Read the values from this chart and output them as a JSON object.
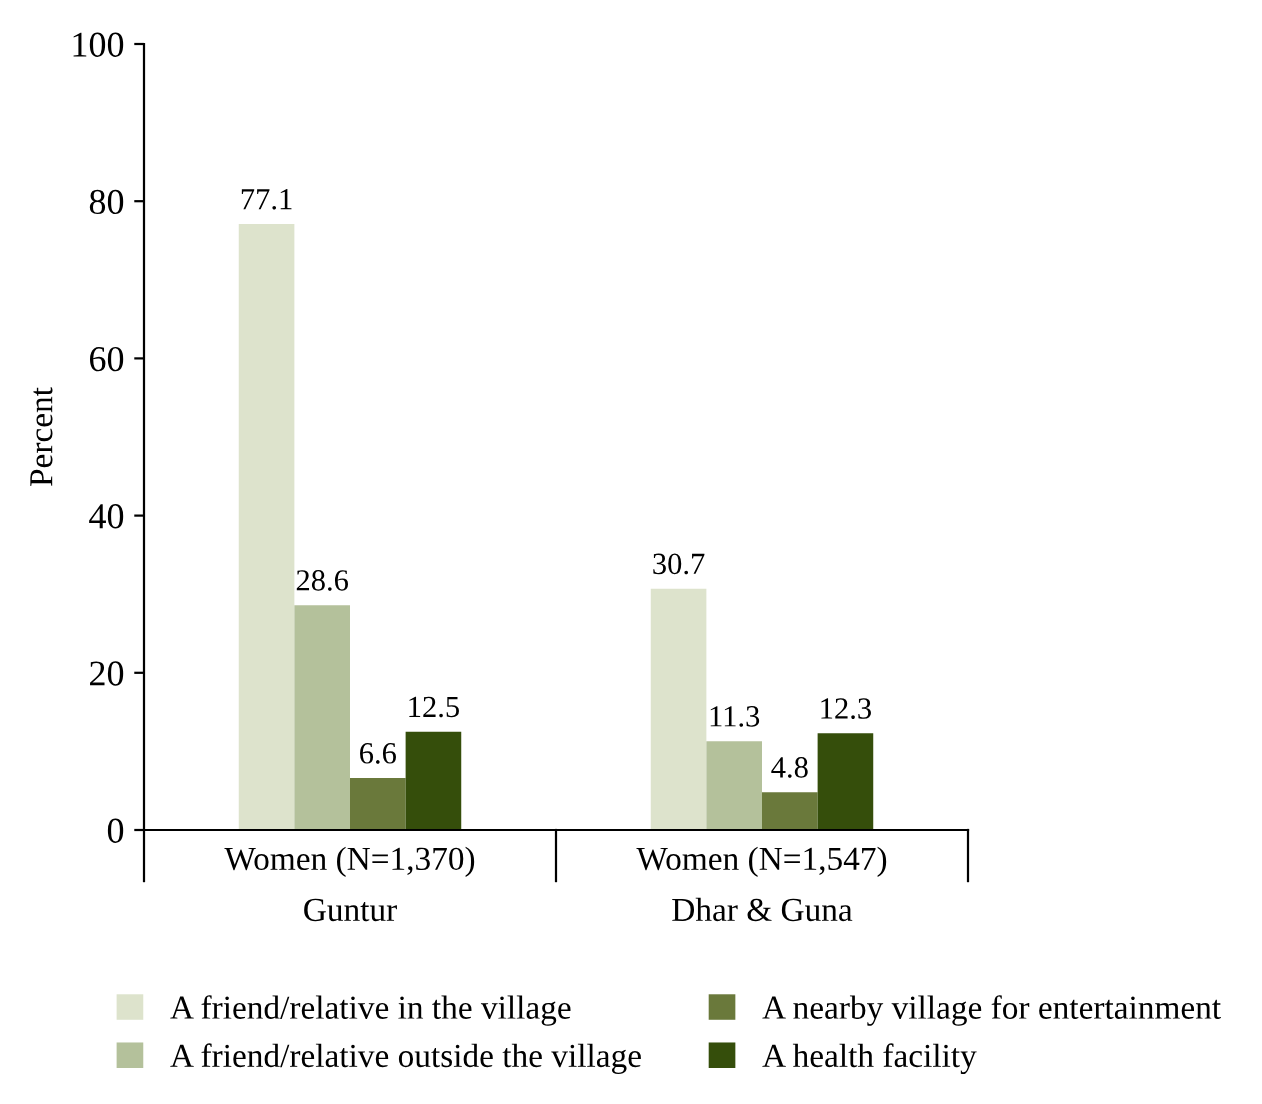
{
  "chart_data": {
    "type": "bar",
    "ylabel": "Percent",
    "categories": [
      "Women (N=1,370)\nGuntur",
      "Women (N=1,547)\nDhar & Guna"
    ],
    "series": [
      {
        "name": "A friend/relative in the village",
        "color": "#dde3cc",
        "values": [
          77.1,
          30.7
        ]
      },
      {
        "name": "A friend/relative outside the village",
        "color": "#b4c19b",
        "values": [
          28.6,
          11.3
        ]
      },
      {
        "name": "A nearby village for entertainment",
        "color": "#6a793b",
        "values": [
          6.6,
          4.8
        ]
      },
      {
        "name": "A health facility",
        "color": "#354e0b",
        "values": [
          12.5,
          12.3
        ]
      }
    ],
    "ylim": [
      0,
      100
    ],
    "yticks": [
      0,
      20,
      40,
      60,
      80,
      100
    ],
    "data_labels": true,
    "grid": false,
    "legend": "bottom"
  }
}
